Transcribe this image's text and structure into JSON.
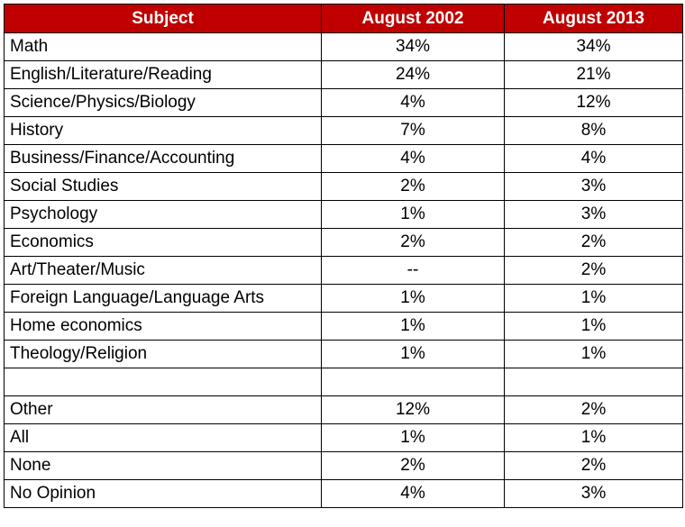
{
  "chart_data": {
    "type": "table",
    "columns": [
      "Subject",
      "August 2002",
      "August 2013"
    ],
    "rows": [
      {
        "subject": "Math",
        "aug2002": "34%",
        "aug2013": "34%"
      },
      {
        "subject": "English/Literature/Reading",
        "aug2002": "24%",
        "aug2013": "21%"
      },
      {
        "subject": "Science/Physics/Biology",
        "aug2002": "4%",
        "aug2013": "12%"
      },
      {
        "subject": "History",
        "aug2002": "7%",
        "aug2013": "8%"
      },
      {
        "subject": "Business/Finance/Accounting",
        "aug2002": "4%",
        "aug2013": "4%"
      },
      {
        "subject": "Social Studies",
        "aug2002": "2%",
        "aug2013": "3%"
      },
      {
        "subject": "Psychology",
        "aug2002": "1%",
        "aug2013": "3%"
      },
      {
        "subject": "Economics",
        "aug2002": "2%",
        "aug2013": "2%"
      },
      {
        "subject": "Art/Theater/Music",
        "aug2002": "--",
        "aug2013": "2%"
      },
      {
        "subject": "Foreign Language/Language Arts",
        "aug2002": "1%",
        "aug2013": "1%"
      },
      {
        "subject": "Home economics",
        "aug2002": "1%",
        "aug2013": "1%"
      },
      {
        "subject": "Theology/Religion",
        "aug2002": "1%",
        "aug2013": "1%"
      },
      {
        "subject": "",
        "aug2002": "",
        "aug2013": ""
      },
      {
        "subject": "Other",
        "aug2002": "12%",
        "aug2013": "2%"
      },
      {
        "subject": "All",
        "aug2002": "1%",
        "aug2013": "1%"
      },
      {
        "subject": "None",
        "aug2002": "2%",
        "aug2013": "2%"
      },
      {
        "subject": "No Opinion",
        "aug2002": "4%",
        "aug2013": "3%"
      }
    ]
  },
  "colors": {
    "header_bg": "#c00000",
    "header_text": "#ffffff",
    "border": "#000000"
  }
}
